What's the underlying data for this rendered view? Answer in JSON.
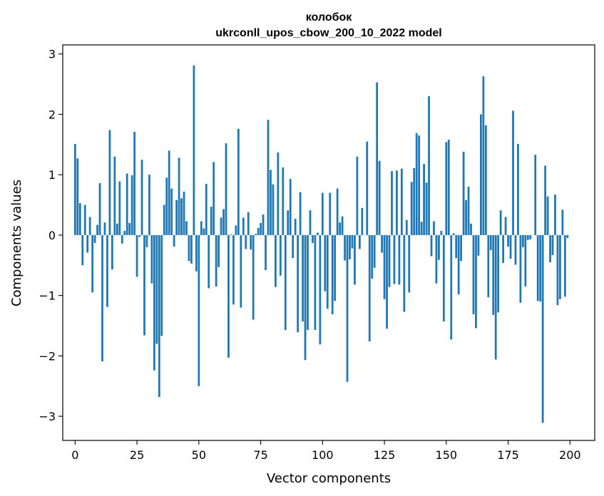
{
  "chart_data": {
    "type": "bar",
    "title": "колобок",
    "subtitle": "ukrconll_upos_cbow_200_10_2022 model",
    "xlabel": "Vector components",
    "ylabel": "Components values",
    "xlim": [
      -5,
      210
    ],
    "ylim": [
      -3.4,
      3.15
    ],
    "xticks": [
      0,
      25,
      50,
      75,
      100,
      125,
      150,
      175,
      200
    ],
    "yticks": [
      -3,
      -2,
      -1,
      0,
      1,
      2,
      3
    ],
    "grid": false,
    "legend": "none",
    "bar_color": "#1f77b4",
    "series": [
      {
        "values": [
          1.51,
          1.27,
          0.53,
          -0.5,
          0.5,
          -0.29,
          0.3,
          -0.95,
          -0.13,
          0.17,
          0.86,
          -2.09,
          0.21,
          -1.19,
          1.74,
          -0.57,
          1.3,
          0.19,
          0.89,
          -0.14,
          0.07,
          1.02,
          0.2,
          0.99,
          1.71,
          -0.69,
          -0.03,
          1.25,
          -1.66,
          -0.2,
          1.0,
          -0.8,
          -2.24,
          -1.8,
          -2.68,
          -1.67,
          0.5,
          0.95,
          1.4,
          0.77,
          -0.19,
          0.58,
          1.28,
          0.61,
          0.72,
          0.23,
          -0.43,
          -0.47,
          2.81,
          -0.6,
          -2.5,
          0.23,
          0.11,
          0.85,
          -0.88,
          0.47,
          1.21,
          -0.85,
          -0.53,
          0.29,
          0.43,
          1.52,
          -2.03,
          0.01,
          -1.15,
          0.16,
          1.76,
          -1.2,
          0.29,
          -0.23,
          0.38,
          -0.24,
          -1.4,
          0.02,
          0.12,
          0.2,
          0.34,
          -0.58,
          1.91,
          1.08,
          0.84,
          -0.86,
          1.37,
          -0.67,
          1.12,
          -1.57,
          0.41,
          0.93,
          -0.38,
          0.27,
          -1.61,
          0.71,
          -1.43,
          -2.07,
          -1.57,
          0.41,
          -0.13,
          -1.57,
          0.04,
          -1.81,
          0.7,
          -0.93,
          -1.22,
          0.7,
          -1.31,
          -1.09,
          0.77,
          0.21,
          0.31,
          -0.42,
          -2.43,
          -0.4,
          -0.22,
          -0.82,
          1.3,
          -0.23,
          0.45,
          0.0,
          1.55,
          -1.76,
          -0.72,
          -0.54,
          2.53,
          1.23,
          -0.29,
          -1.06,
          -1.55,
          -0.86,
          1.06,
          -0.81,
          1.07,
          -0.82,
          1.1,
          -1.27,
          0.25,
          -0.95,
          0.88,
          1.11,
          1.69,
          1.65,
          0.22,
          1.18,
          0.87,
          2.3,
          -0.35,
          0.23,
          -0.8,
          -0.41,
          0.07,
          -1.43,
          1.54,
          1.58,
          -1.73,
          0.03,
          -0.38,
          -0.98,
          -0.43,
          1.38,
          0.58,
          0.8,
          0.19,
          -1.31,
          -1.54,
          -0.34,
          2.0,
          2.63,
          1.82,
          -1.03,
          -0.25,
          -1.32,
          -2.06,
          -1.28,
          0.41,
          -0.46,
          0.3,
          -0.19,
          -0.39,
          2.06,
          -0.49,
          1.51,
          -1.12,
          -0.2,
          -0.85,
          -0.08,
          -0.07,
          0.0,
          1.33,
          -1.09,
          -1.1,
          -3.11,
          1.15,
          0.64,
          -0.45,
          -0.33,
          0.67,
          -1.16,
          -1.06,
          0.42,
          -1.02,
          -0.05
        ]
      }
    ]
  }
}
